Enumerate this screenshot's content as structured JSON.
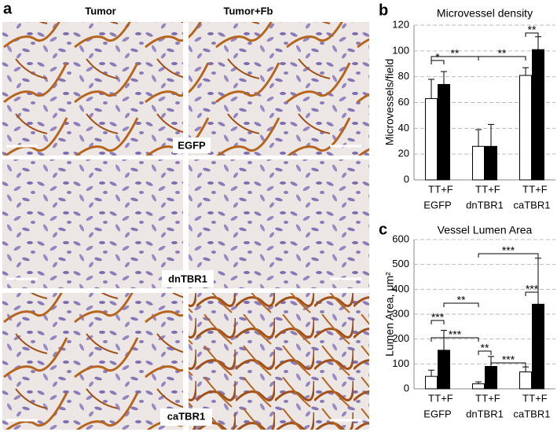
{
  "panels": {
    "a": "a",
    "b": "b",
    "c": "c"
  },
  "columns": [
    "Tumor",
    "Tumor+Fb"
  ],
  "rows": [
    "EGFP",
    "dnTBR1",
    "caTBR1"
  ],
  "chart_data": [
    {
      "type": "bar",
      "title": "Microvessel density",
      "y_label": "Microvessels/field",
      "categories": [
        "EGFP",
        "dnTBR1",
        "caTBR1"
      ],
      "series": [
        {
          "name": "T",
          "color": "#ffffff",
          "values": [
            63,
            26,
            81
          ],
          "errors": [
            15,
            13,
            6
          ]
        },
        {
          "name": "T+F",
          "color": "#000000",
          "values": [
            74,
            26,
            101
          ],
          "errors": [
            10,
            17,
            10
          ]
        }
      ],
      "ylim": [
        0,
        120
      ],
      "yticks": [
        0,
        20,
        40,
        60,
        80,
        100,
        120
      ],
      "grid": true,
      "annotations": [
        "*",
        "**",
        "**",
        "**"
      ]
    },
    {
      "type": "bar",
      "title": "Vessel Lumen Area",
      "y_label": "Lumen Area, μm²",
      "categories": [
        "EGFP",
        "dnTBR1",
        "caTBR1"
      ],
      "series": [
        {
          "name": "T",
          "color": "#ffffff",
          "values": [
            50,
            20,
            68
          ],
          "errors": [
            25,
            8,
            20
          ]
        },
        {
          "name": "T+F",
          "color": "#000000",
          "values": [
            155,
            90,
            340
          ],
          "errors": [
            80,
            40,
            185
          ]
        }
      ],
      "ylim": [
        0,
        600
      ],
      "yticks": [
        0,
        100,
        200,
        300,
        400,
        500,
        600
      ],
      "grid": true,
      "annotations": [
        "***",
        "**",
        "***",
        "**",
        "***",
        "***",
        "***"
      ]
    }
  ]
}
